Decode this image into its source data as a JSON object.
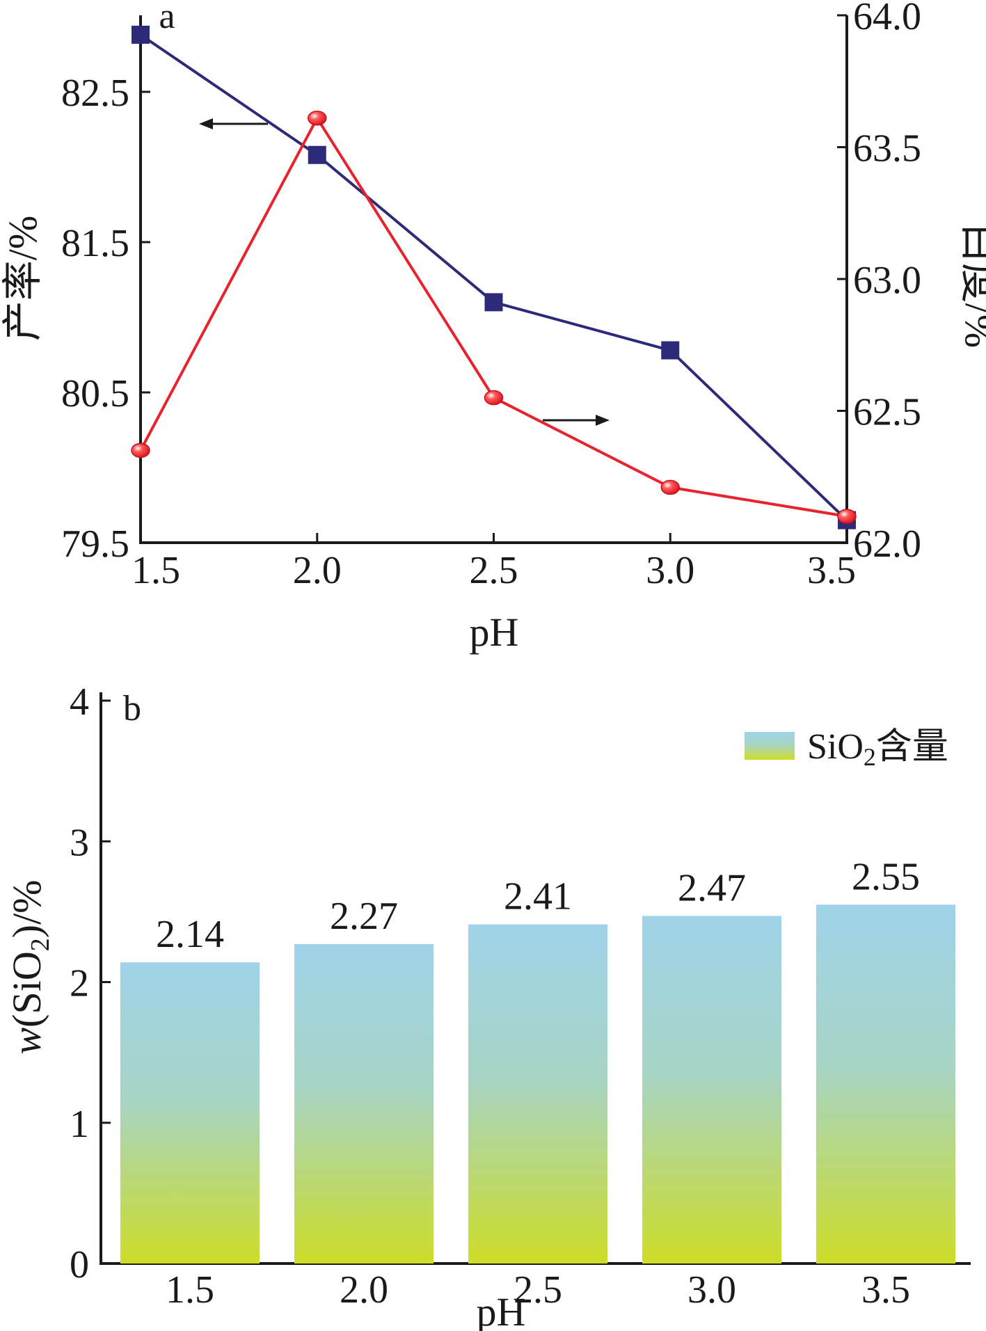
{
  "chart_data": [
    {
      "panel": "a",
      "type": "line",
      "x": [
        1.5,
        2.0,
        2.5,
        3.0,
        3.5
      ],
      "xlabel": "pH",
      "xticks": [
        "1.5",
        "2.0",
        "2.5",
        "3.0",
        "3.5"
      ],
      "xlim": [
        1.5,
        3.5
      ],
      "ylabel_left": "产率/%",
      "ylabel_right": "白度/%",
      "ylim_left": [
        79.5,
        82.5
      ],
      "yticks_left": [
        "79.5",
        "80.5",
        "81.5",
        "82.5"
      ],
      "ylim_right": [
        62.0,
        64.0
      ],
      "yticks_right": [
        "62.0",
        "62.5",
        "63.0",
        "63.5",
        "64.0"
      ],
      "series": [
        {
          "axis": "left",
          "marker": "square",
          "color": "#2e2a7a",
          "values": [
            82.88,
            82.08,
            81.1,
            80.78,
            79.65
          ]
        },
        {
          "axis": "right",
          "marker": "circle",
          "color": "#e8232e",
          "values": [
            62.35,
            63.61,
            62.55,
            62.21,
            62.1
          ]
        }
      ],
      "annotations": [
        "arrow-left (yield axis)",
        "arrow-right (whiteness axis)"
      ],
      "grid": false
    },
    {
      "panel": "b",
      "type": "bar",
      "categories": [
        "1.5",
        "2.0",
        "2.5",
        "3.0",
        "3.5"
      ],
      "values": [
        2.14,
        2.27,
        2.41,
        2.47,
        2.55
      ],
      "data_labels": [
        "2.14",
        "2.27",
        "2.41",
        "2.47",
        "2.55"
      ],
      "xlabel": "pH",
      "ylabel": "w(SiO2)/%",
      "ylim": [
        0,
        4
      ],
      "yticks": [
        "0",
        "1",
        "2",
        "3",
        "4"
      ],
      "legend": {
        "label": "SiO2含量",
        "position": "top-right"
      },
      "bar_gradient": [
        "#9fd3e9",
        "#ccdc2a"
      ],
      "grid": false
    }
  ]
}
